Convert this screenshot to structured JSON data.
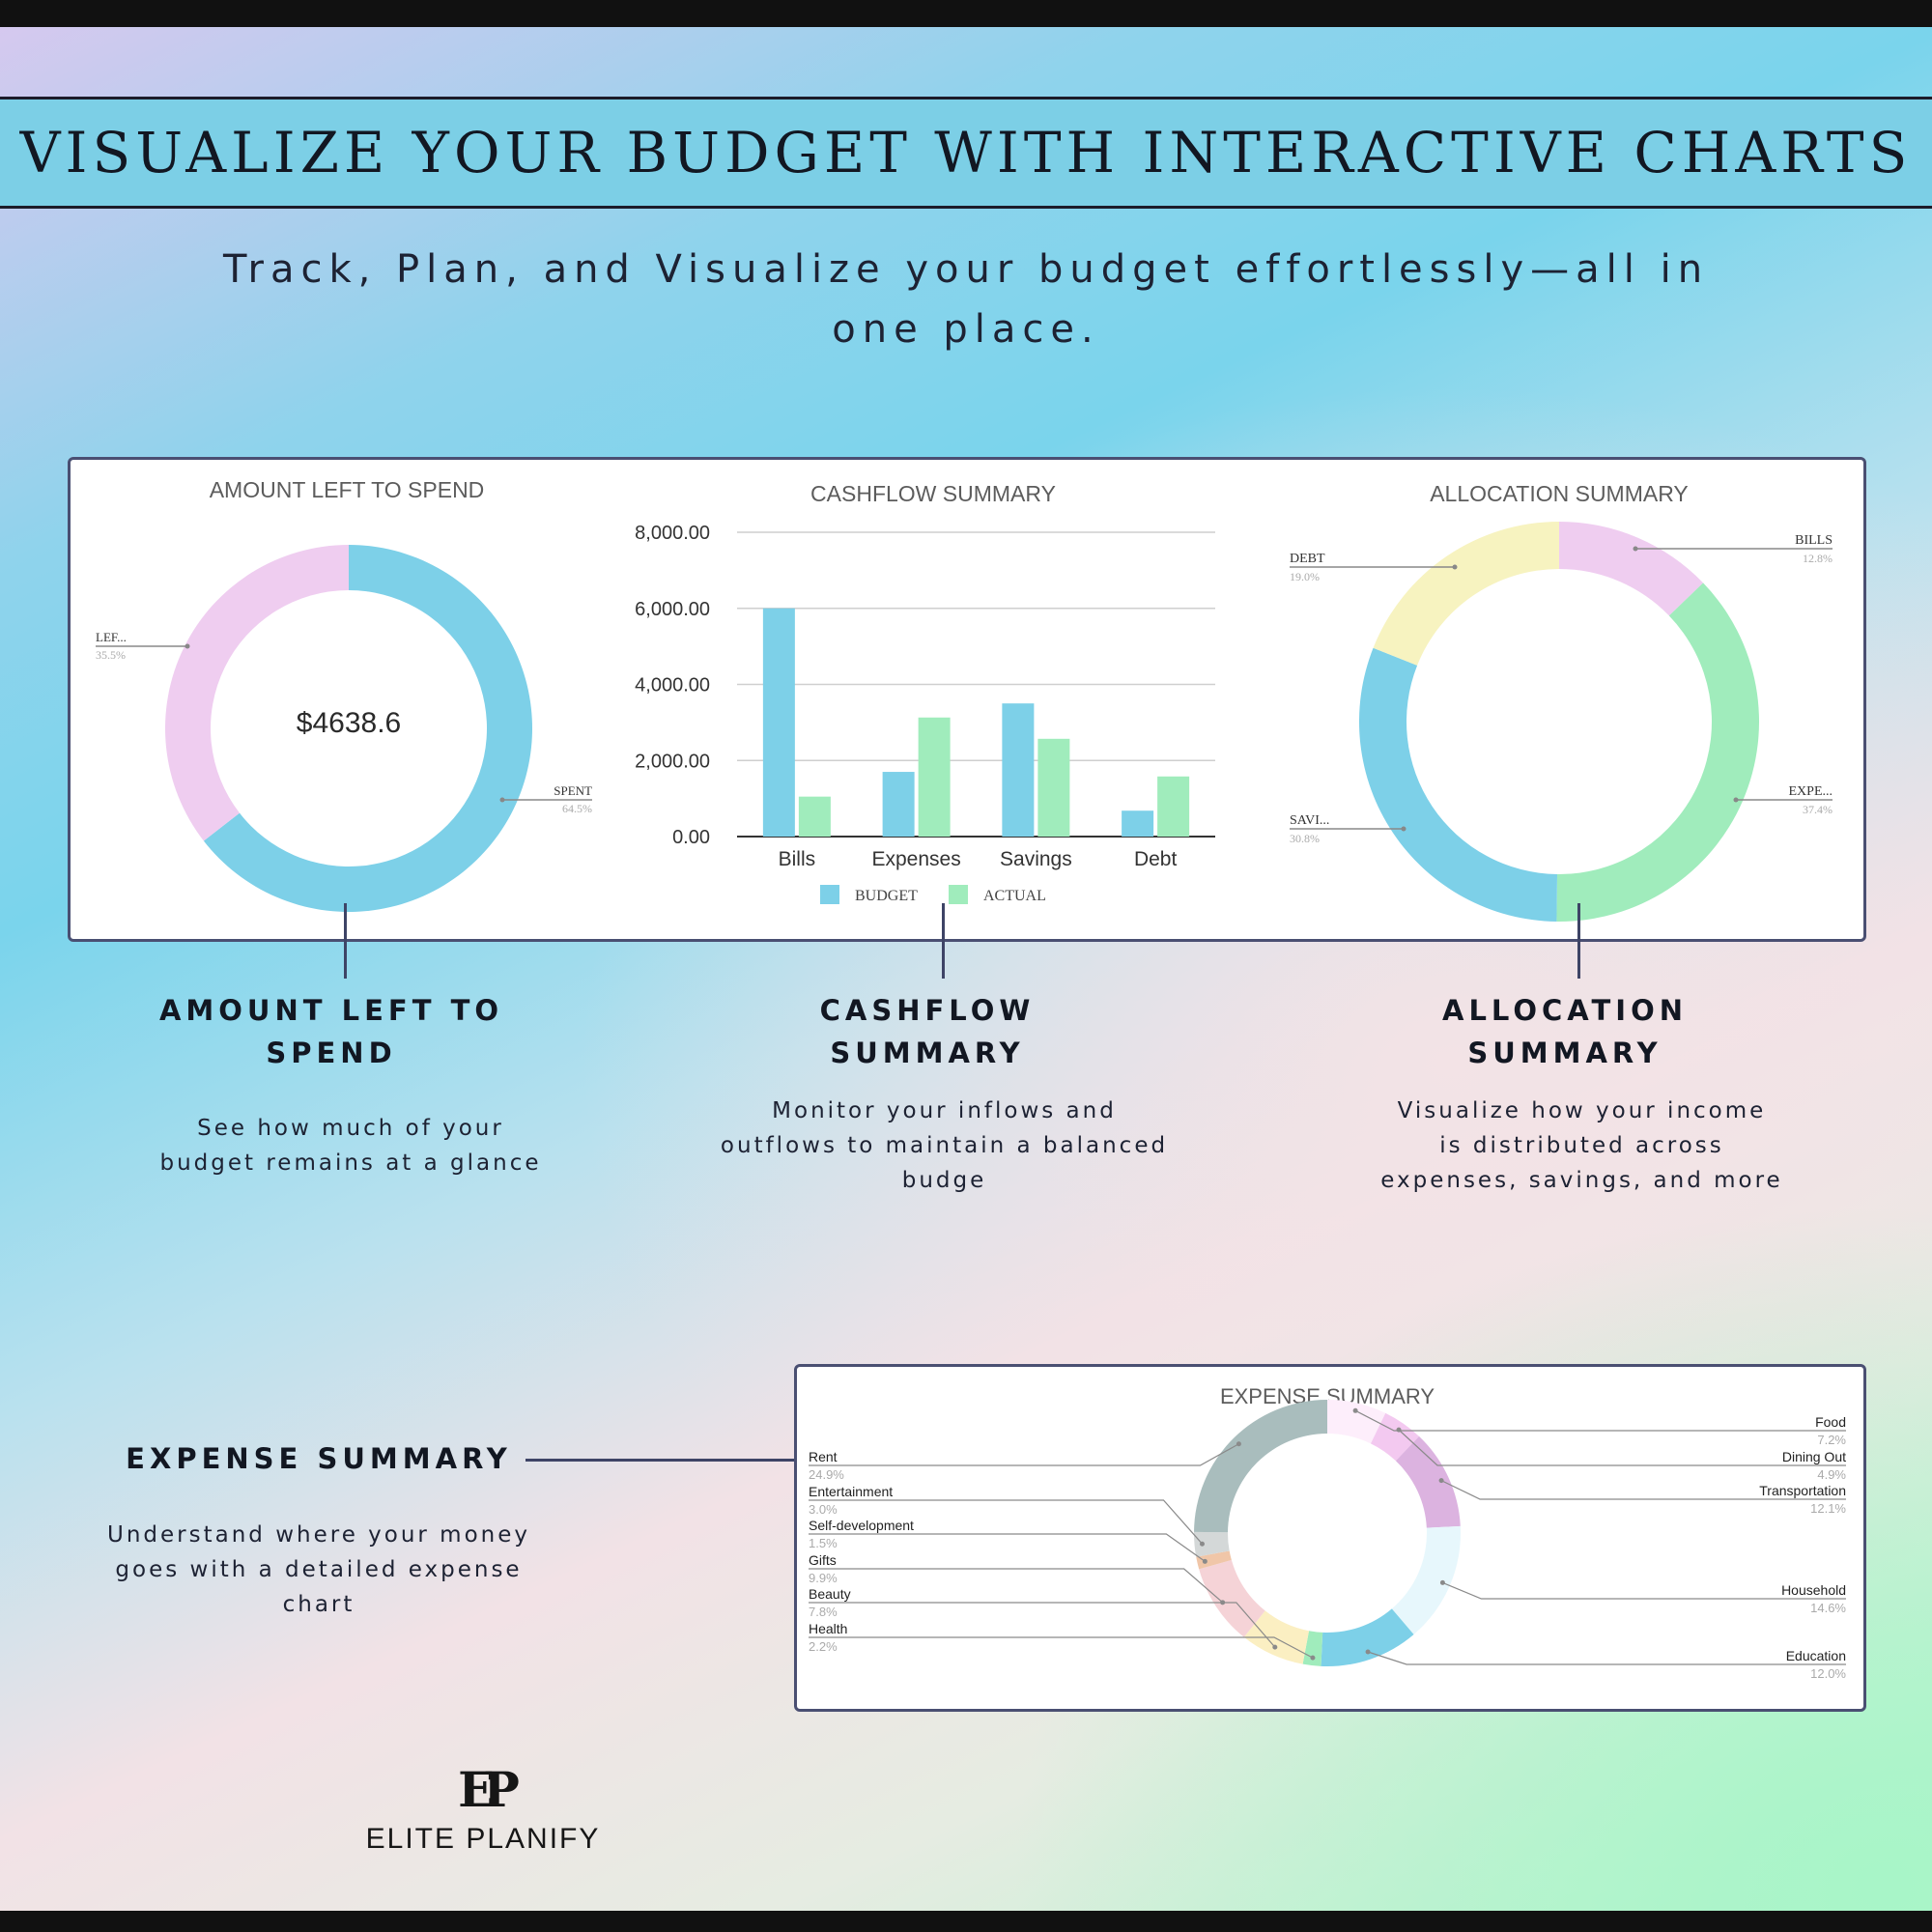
{
  "header": {
    "title": "VISUALIZE YOUR BUDGET WITH INTERACTIVE CHARTS",
    "subtitle_line1": "Track, Plan, and Visualize your budget effortlessly—all in",
    "subtitle_line2": "one place."
  },
  "features": {
    "amount_left": {
      "title_line1": "AMOUNT LEFT TO",
      "title_line2": "SPEND",
      "desc_line1": "See how much of your",
      "desc_line2": "budget remains at a glance"
    },
    "cashflow": {
      "title_line1": "CASHFLOW",
      "title_line2": "SUMMARY",
      "desc_line1": "Monitor your inflows and",
      "desc_line2": "outflows to maintain a balanced",
      "desc_line3": "budge"
    },
    "allocation": {
      "title_line1": "ALLOCATION",
      "title_line2": "SUMMARY",
      "desc_line1": "Visualize how your income",
      "desc_line2": "is distributed across",
      "desc_line3": "expenses, savings, and more"
    },
    "expense": {
      "title": "EXPENSE SUMMARY",
      "desc_line1": "Understand where your money",
      "desc_line2": "goes with a detailed expense",
      "desc_line3": "chart"
    }
  },
  "brand": {
    "mark": "EP",
    "name": "ELITE PLANIFY"
  },
  "colors": {
    "blue": "#7dd0e8",
    "pink": "#efcdf0",
    "green": "#a0ecbc",
    "yellow": "#f7f3c0",
    "banner": "#7ccfe6",
    "panel_border": "#4a4f72",
    "grid": "#cfcfcf"
  },
  "chart_data": [
    {
      "type": "pie",
      "donut": true,
      "title": "AMOUNT LEFT TO SPEND",
      "center_label": "$4638.6",
      "slices": [
        {
          "label": "SPENT",
          "percent_label": "64.5%",
          "value": 64.5,
          "color": "#7dd0e8"
        },
        {
          "label": "LEF...",
          "percent_label": "35.5%",
          "value": 35.5,
          "color": "#efcdf0"
        }
      ]
    },
    {
      "type": "bar",
      "title": "CASHFLOW SUMMARY",
      "categories": [
        "Bills",
        "Expenses",
        "Savings",
        "Debt"
      ],
      "series": [
        {
          "name": "BUDGET",
          "values": [
            6000,
            1700,
            3500,
            680
          ],
          "color": "#7dd0e8"
        },
        {
          "name": "ACTUAL",
          "values": [
            1050,
            3130,
            2570,
            1580
          ],
          "color": "#a0ecbc"
        }
      ],
      "ylim": [
        0,
        8000
      ],
      "yticks": [
        "0.00",
        "2,000.00",
        "4,000.00",
        "6,000.00",
        "8,000.00"
      ],
      "ytick_values": [
        0,
        2000,
        4000,
        6000,
        8000
      ],
      "grid": true,
      "legend_position": "bottom"
    },
    {
      "type": "pie",
      "donut": true,
      "title": "ALLOCATION SUMMARY",
      "slices": [
        {
          "label": "BILLS",
          "percent_label": "12.8%",
          "value": 12.8,
          "color": "#efcdf0"
        },
        {
          "label": "EXPE...",
          "percent_label": "37.4%",
          "value": 37.4,
          "color": "#a0ecbc"
        },
        {
          "label": "SAVI...",
          "percent_label": "30.8%",
          "value": 30.8,
          "color": "#7dd0e8"
        },
        {
          "label": "DEBT",
          "percent_label": "19.0%",
          "value": 19.0,
          "color": "#f7f3c0"
        }
      ]
    },
    {
      "type": "pie",
      "donut": true,
      "title": "EXPENSE SUMMARY",
      "slices": [
        {
          "label": "Food",
          "percent_label": "7.2%",
          "value": 7.2,
          "color": "#fdeefb"
        },
        {
          "label": "Dining Out",
          "percent_label": "4.9%",
          "value": 4.9,
          "color": "#f3c9f0"
        },
        {
          "label": "Transportation",
          "percent_label": "12.1%",
          "value": 12.1,
          "color": "#dcb3e0"
        },
        {
          "label": "Household",
          "percent_label": "14.6%",
          "value": 14.6,
          "color": "#e7f7fc"
        },
        {
          "label": "Education",
          "percent_label": "12.0%",
          "value": 12.0,
          "color": "#7dd0e8"
        },
        {
          "label": "Health",
          "percent_label": "2.2%",
          "value": 2.2,
          "color": "#a0ecbc"
        },
        {
          "label": "Beauty",
          "percent_label": "7.8%",
          "value": 7.8,
          "color": "#fbefc2"
        },
        {
          "label": "Gifts",
          "percent_label": "9.9%",
          "value": 9.9,
          "color": "#f5d3d7"
        },
        {
          "label": "Self-development",
          "percent_label": "1.5%",
          "value": 1.5,
          "color": "#f0c6a8"
        },
        {
          "label": "Entertainment",
          "percent_label": "3.0%",
          "value": 3.0,
          "color": "#d4d8d8"
        },
        {
          "label": "Rent",
          "percent_label": "24.9%",
          "value": 24.9,
          "color": "#a9bdbd"
        }
      ]
    }
  ]
}
